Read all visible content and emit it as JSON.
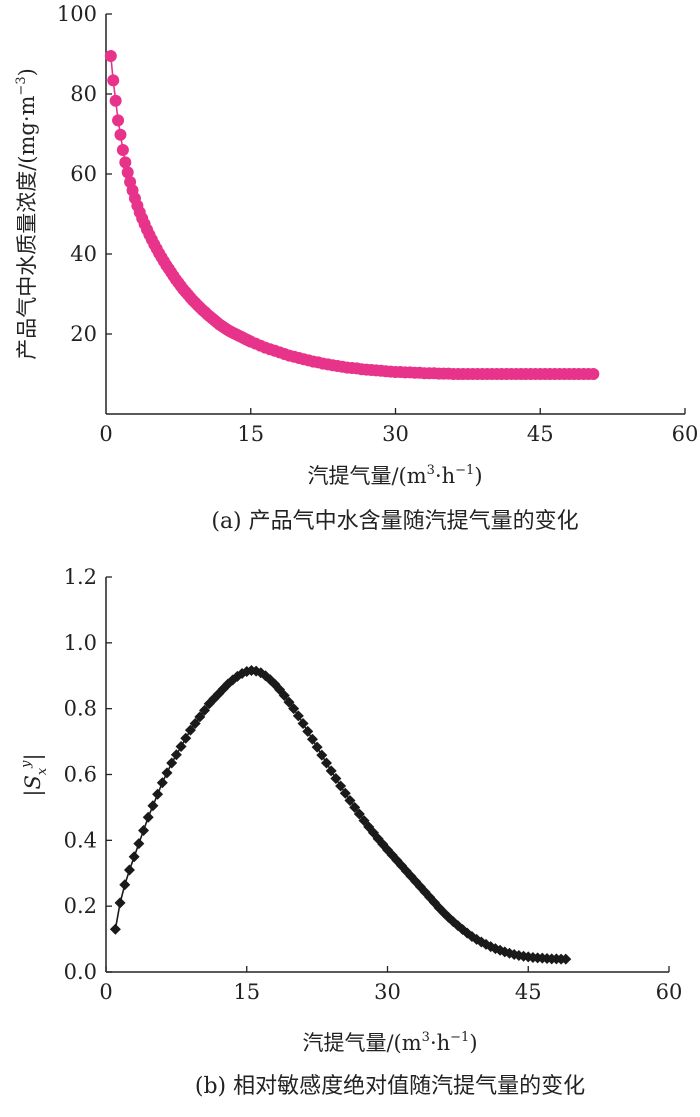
{
  "chart_data": [
    {
      "type": "line",
      "caption": "(a) 产品气中水含量随汽提气量的变化",
      "xlabel_text": "汽提气量/(m",
      "xlabel_sup": "3",
      "xlabel_mid": "·h",
      "xlabel_sup2": "−1",
      "xlabel_end": ")",
      "ylabel_text": "产品气中水质量浓度/(mg·m",
      "ylabel_sup": "−3",
      "ylabel_end": ")",
      "xlim": [
        0,
        60
      ],
      "ylim": [
        0,
        100
      ],
      "xticks": [
        "15",
        "30",
        "45",
        "60"
      ],
      "yticks": [
        "20",
        "40",
        "60",
        "80",
        "100"
      ],
      "origin_label": "0",
      "marker": "circle",
      "color": "#e8338a",
      "series": [
        {
          "x": [
            0.5,
            0.75,
            1.0,
            1.25,
            1.5,
            1.75,
            2.0,
            2.25,
            2.5,
            2.75,
            3.0,
            3.25,
            3.5,
            3.75,
            4.0,
            4.25,
            4.5,
            4.75,
            5.0,
            5.25,
            5.5,
            5.75,
            6.0,
            6.25,
            6.5,
            6.75,
            7.0,
            7.25,
            7.5,
            7.75,
            8.0,
            8.25,
            8.5,
            8.75,
            9.0,
            9.25,
            9.5,
            9.75,
            10.0,
            10.25,
            10.5,
            10.75,
            11.0,
            11.25,
            11.5,
            11.75,
            12.0,
            12.25,
            12.5,
            12.75,
            13.0,
            13.25,
            13.5,
            13.75,
            14.0,
            14.25,
            14.5,
            14.75,
            15.0,
            15.5,
            16.0,
            16.5,
            17.0,
            17.5,
            18.0,
            18.5,
            19.0,
            19.5,
            20.0,
            20.5,
            21.0,
            21.5,
            22.0,
            22.5,
            23.0,
            23.5,
            24.0,
            24.5,
            25.0,
            25.5,
            26.0,
            26.5,
            27.0,
            27.5,
            28.0,
            28.5,
            29.0,
            29.5,
            30.0,
            30.5,
            31.0,
            31.5,
            32.0,
            32.5,
            33.0,
            33.5,
            34.0,
            34.5,
            35.0,
            35.5,
            36.0,
            36.5,
            37.0,
            37.5,
            38.0,
            38.5,
            39.0,
            39.5,
            40.0,
            40.5,
            41.0,
            41.5,
            42.0,
            42.5,
            43.0,
            43.5,
            44.0,
            44.5,
            45.0,
            45.5,
            46.0,
            46.5,
            47.0,
            47.5,
            48.0,
            48.5,
            49.0,
            49.5,
            50.0,
            50.5
          ],
          "y": [
            89.5,
            83.4,
            78.3,
            73.4,
            69.8,
            66.0,
            62.9,
            60.4,
            58.0,
            55.9,
            53.9,
            52.1,
            50.4,
            48.9,
            47.5,
            46.1,
            44.8,
            43.6,
            42.4,
            41.3,
            40.2,
            39.2,
            38.2,
            37.2,
            36.3,
            35.4,
            34.5,
            33.6,
            32.8,
            32.0,
            31.2,
            30.5,
            29.8,
            29.1,
            28.4,
            27.8,
            27.2,
            26.6,
            26.0,
            25.5,
            24.9,
            24.4,
            23.9,
            23.4,
            22.9,
            22.4,
            22.0,
            21.6,
            21.2,
            20.8,
            20.5,
            20.2,
            19.9,
            19.6,
            19.3,
            19.0,
            18.7,
            18.4,
            18.1,
            17.6,
            17.1,
            16.6,
            16.2,
            15.8,
            15.4,
            15.0,
            14.6,
            14.3,
            14.0,
            13.7,
            13.4,
            13.1,
            12.9,
            12.6,
            12.4,
            12.2,
            12.0,
            11.8,
            11.6,
            11.5,
            11.4,
            11.2,
            11.1,
            11.0,
            10.9,
            10.8,
            10.7,
            10.6,
            10.5,
            10.5,
            10.4,
            10.4,
            10.3,
            10.3,
            10.2,
            10.2,
            10.2,
            10.1,
            10.1,
            10.1,
            10.0,
            10.0,
            10.0,
            10.0,
            10.0,
            10.0,
            10.0,
            10.0,
            10.0,
            10.0,
            10.0,
            10.0,
            10.0,
            10.0,
            10.0,
            10.0,
            10.0,
            10.0,
            10.0,
            10.0,
            10.0,
            10.0,
            10.0,
            10.0,
            10.0,
            10.0,
            10.0,
            10.0,
            10.0,
            10.0
          ]
        }
      ]
    },
    {
      "type": "line",
      "caption": "(b) 相对敏感度绝对值随汽提气量的变化",
      "xlabel_text": "汽提气量/(m",
      "xlabel_sup": "3",
      "xlabel_mid": "·h",
      "xlabel_sup2": "−1",
      "xlabel_end": ")",
      "ylabel_text": "|S",
      "ylabel_sub": "x",
      "ylabel_sup": "y",
      "ylabel_end": "|",
      "xlim": [
        0,
        60
      ],
      "ylim": [
        0,
        1.2
      ],
      "xticks": [
        "0",
        "15",
        "30",
        "45",
        "60"
      ],
      "yticks": [
        "0.0",
        "0.2",
        "0.4",
        "0.6",
        "0.8",
        "1.0",
        "1.2"
      ],
      "marker": "diamond",
      "color": "#1a1a1a",
      "series": [
        {
          "x": [
            1.0,
            1.5,
            2.0,
            2.5,
            3.0,
            3.5,
            4.0,
            4.5,
            5.0,
            5.5,
            6.0,
            6.5,
            7.0,
            7.5,
            8.0,
            8.5,
            9.0,
            9.5,
            10.0,
            10.5,
            11.0,
            11.5,
            12.0,
            12.5,
            13.0,
            13.5,
            14.0,
            14.5,
            15.0,
            15.5,
            16.0,
            16.5,
            17.0,
            17.5,
            18.0,
            18.5,
            19.0,
            19.5,
            20.0,
            20.5,
            21.0,
            21.5,
            22.0,
            22.5,
            23.0,
            23.5,
            24.0,
            24.5,
            25.0,
            25.5,
            26.0,
            26.5,
            27.0,
            27.5,
            28.0,
            28.5,
            29.0,
            29.5,
            30.0,
            30.5,
            31.0,
            31.5,
            32.0,
            32.5,
            33.0,
            33.5,
            34.0,
            34.5,
            35.0,
            35.5,
            36.0,
            36.5,
            37.0,
            37.5,
            38.0,
            38.5,
            39.0,
            39.5,
            40.0,
            40.5,
            41.0,
            41.5,
            42.0,
            42.5,
            43.0,
            43.5,
            44.0,
            44.5,
            45.0,
            45.5,
            46.0,
            46.5,
            47.0,
            47.5,
            48.0,
            48.5,
            49.0
          ],
          "y": [
            0.13,
            0.21,
            0.265,
            0.31,
            0.35,
            0.39,
            0.43,
            0.47,
            0.505,
            0.54,
            0.575,
            0.605,
            0.635,
            0.66,
            0.685,
            0.71,
            0.735,
            0.755,
            0.775,
            0.795,
            0.815,
            0.83,
            0.845,
            0.86,
            0.875,
            0.887,
            0.898,
            0.907,
            0.913,
            0.916,
            0.914,
            0.909,
            0.9,
            0.888,
            0.874,
            0.858,
            0.84,
            0.82,
            0.8,
            0.778,
            0.755,
            0.731,
            0.707,
            0.683,
            0.659,
            0.635,
            0.611,
            0.588,
            0.565,
            0.543,
            0.521,
            0.5,
            0.48,
            0.46,
            0.441,
            0.423,
            0.405,
            0.388,
            0.371,
            0.355,
            0.339,
            0.323,
            0.307,
            0.291,
            0.275,
            0.259,
            0.243,
            0.227,
            0.211,
            0.195,
            0.18,
            0.166,
            0.153,
            0.141,
            0.129,
            0.118,
            0.108,
            0.099,
            0.091,
            0.084,
            0.077,
            0.071,
            0.066,
            0.061,
            0.057,
            0.053,
            0.05,
            0.048,
            0.046,
            0.044,
            0.043,
            0.042,
            0.041,
            0.04,
            0.04,
            0.039,
            0.039
          ]
        }
      ]
    }
  ]
}
